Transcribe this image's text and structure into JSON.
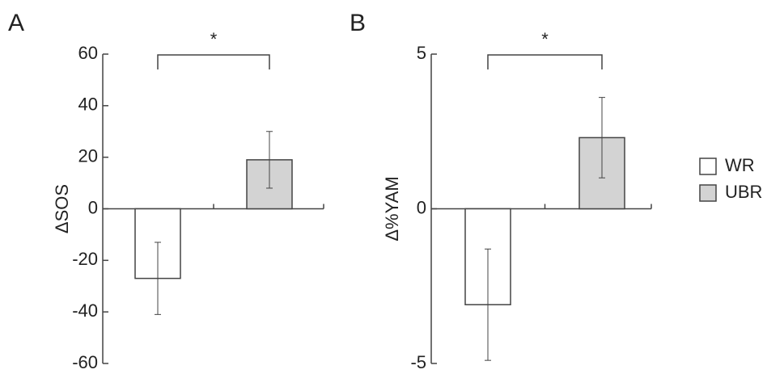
{
  "chart_data": [
    {
      "type": "bar",
      "panel": "A",
      "ylabel": "ΔSOS",
      "annotation": "*",
      "values": [
        -27,
        19
      ],
      "errors": [
        14,
        11
      ],
      "ylim": [
        -60,
        60
      ],
      "yticks": [
        -60,
        -40,
        -20,
        0,
        20,
        40,
        60
      ]
    },
    {
      "type": "bar",
      "panel": "B",
      "ylabel": "Δ%YAM",
      "annotation": "*",
      "values": [
        -3.1,
        2.3
      ],
      "errors": [
        1.8,
        1.3
      ],
      "ylim": [
        -5,
        5
      ],
      "yticks": [
        -5,
        0,
        5
      ]
    }
  ],
  "legend": [
    {
      "name": "WR",
      "color": "#ffffff"
    },
    {
      "name": "UBR",
      "color": "#d3d3d3"
    }
  ]
}
